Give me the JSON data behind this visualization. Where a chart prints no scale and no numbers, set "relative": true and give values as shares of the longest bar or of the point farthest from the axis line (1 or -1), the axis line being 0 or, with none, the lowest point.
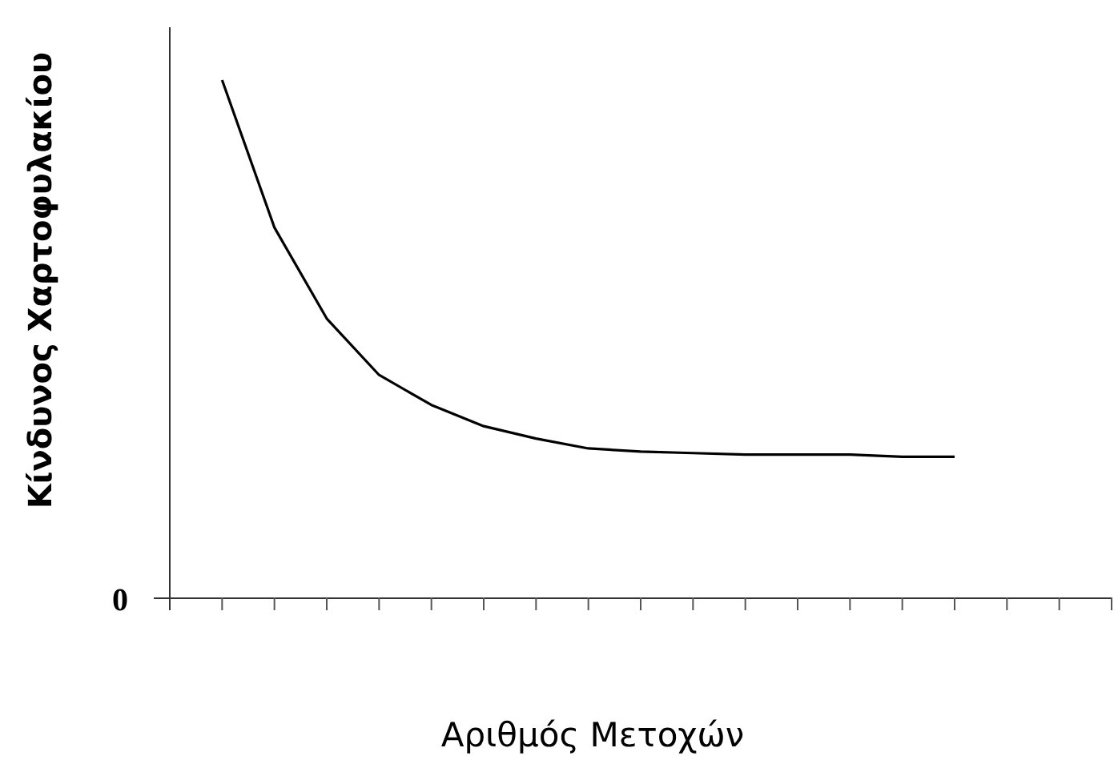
{
  "chart_data": {
    "type": "line",
    "relative": true,
    "xlabel": "Αριθμός Μετοχών",
    "ylabel": "Κίνδυνος Χαρτοφυλακίου",
    "annotations": [
      "0"
    ],
    "color": "#000000",
    "marker": "none",
    "categories": [
      null,
      null,
      null,
      null,
      null,
      null,
      null,
      null,
      null,
      null,
      null,
      null,
      null,
      null,
      null,
      null,
      null,
      null,
      null
    ],
    "values": [
      null,
      1,
      0.715,
      0.539,
      0.43,
      0.372,
      0.331,
      0.307,
      0.288,
      0.282,
      0.279,
      0.276,
      0.276,
      0.276,
      0.272,
      0.272,
      null,
      null,
      null
    ]
  }
}
